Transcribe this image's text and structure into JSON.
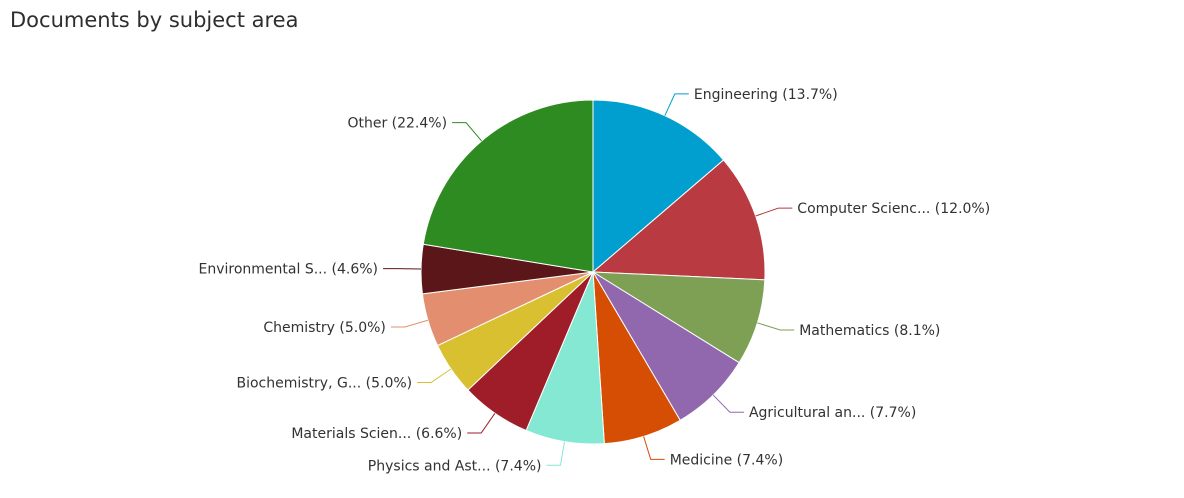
{
  "chart_data": {
    "type": "pie",
    "title": "Documents by subject area",
    "start_angle_deg": 0,
    "direction": "clockwise",
    "slices": [
      {
        "label": "Engineering (13.7%)",
        "value": 13.7,
        "color": "#009fcf"
      },
      {
        "label": "Computer Scienc... (12.0%)",
        "value": 12.0,
        "color": "#b93b41"
      },
      {
        "label": "Mathematics (8.1%)",
        "value": 8.1,
        "color": "#7da055"
      },
      {
        "label": "Agricultural an... (7.7%)",
        "value": 7.7,
        "color": "#9168ae"
      },
      {
        "label": "Medicine (7.4%)",
        "value": 7.4,
        "color": "#d64d04"
      },
      {
        "label": "Physics and Ast... (7.4%)",
        "value": 7.4,
        "color": "#85e8d3"
      },
      {
        "label": "Materials Scien... (6.6%)",
        "value": 6.6,
        "color": "#9e1d28"
      },
      {
        "label": "Biochemistry, G... (5.0%)",
        "value": 5.0,
        "color": "#d8c031"
      },
      {
        "label": "Chemistry (5.0%)",
        "value": 5.0,
        "color": "#e38f6f"
      },
      {
        "label": "Environmental S... (4.6%)",
        "value": 4.6,
        "color": "#5a1619"
      },
      {
        "label": "Other (22.4%)",
        "value": 22.4,
        "color": "#2e8b22"
      }
    ]
  }
}
